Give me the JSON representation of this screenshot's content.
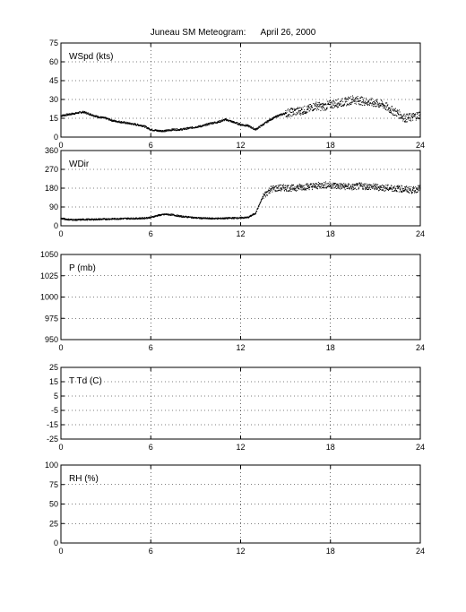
{
  "title": "Juneau SM Meteogram:      April 26, 2000",
  "chart_data": [
    {
      "type": "scatter",
      "label": "WSpd (kts)",
      "xlim": [
        0,
        24
      ],
      "xticks": [
        0,
        6,
        12,
        18,
        24
      ],
      "ylim": [
        0,
        75
      ],
      "yticks": [
        0,
        15,
        30,
        45,
        60,
        75
      ],
      "grid": true,
      "series": [
        {
          "x": [
            0,
            0.5,
            1,
            1.5,
            2,
            2.5,
            3,
            3.5,
            4,
            4.5,
            5,
            5.5,
            6,
            6.5,
            7,
            7.5,
            8,
            8.5,
            9,
            9.5,
            10,
            10.5,
            11,
            11.5,
            12,
            12.5,
            13,
            13.5,
            14,
            14.5,
            15,
            15.5,
            16,
            16.5,
            17,
            17.5,
            18,
            18.5,
            19,
            19.5,
            20,
            20.5,
            21,
            21.5,
            22,
            22.5,
            23,
            23.5,
            24
          ],
          "y": [
            17,
            18,
            19,
            20,
            18,
            16,
            15,
            13,
            12,
            11,
            10,
            9,
            6,
            5,
            5,
            6,
            6,
            7,
            8,
            9,
            11,
            12,
            14,
            12,
            10,
            9,
            6,
            10,
            14,
            17,
            19,
            20,
            21,
            22,
            25,
            24,
            26,
            27,
            28,
            30,
            29,
            28,
            27,
            26,
            22,
            19,
            15,
            16,
            18
          ]
        }
      ]
    },
    {
      "type": "scatter",
      "label": "WDir",
      "xlim": [
        0,
        24
      ],
      "xticks": [
        0,
        6,
        12,
        18,
        24
      ],
      "ylim": [
        0,
        360
      ],
      "yticks": [
        0,
        90,
        180,
        270,
        360
      ],
      "grid": true,
      "series": [
        {
          "x": [
            0,
            0.5,
            1,
            1.5,
            2,
            2.5,
            3,
            3.5,
            4,
            4.5,
            5,
            5.5,
            6,
            6.5,
            7,
            7.5,
            8,
            8.5,
            9,
            9.5,
            10,
            10.5,
            11,
            11.5,
            12,
            12.5,
            13,
            13.5,
            14,
            14.5,
            15,
            15.5,
            16,
            16.5,
            17,
            17.5,
            18,
            18.5,
            19,
            19.5,
            20,
            20.5,
            21,
            21.5,
            22,
            22.5,
            23,
            23.5,
            24
          ],
          "y": [
            35,
            30,
            28,
            30,
            30,
            31,
            32,
            33,
            34,
            35,
            35,
            36,
            40,
            50,
            55,
            52,
            45,
            42,
            38,
            36,
            35,
            35,
            36,
            37,
            38,
            40,
            60,
            140,
            175,
            180,
            182,
            180,
            185,
            188,
            190,
            195,
            195,
            190,
            188,
            185,
            190,
            188,
            185,
            182,
            180,
            178,
            175,
            170,
            180
          ]
        }
      ]
    },
    {
      "type": "line",
      "label": "P (mb)",
      "xlim": [
        0,
        24
      ],
      "xticks": [
        0,
        6,
        12,
        18,
        24
      ],
      "ylim": [
        950,
        1050
      ],
      "yticks": [
        950,
        975,
        1000,
        1025,
        1050
      ],
      "grid": true,
      "series": []
    },
    {
      "type": "line",
      "label": "T Td (C)",
      "xlim": [
        0,
        24
      ],
      "xticks": [
        0,
        6,
        12,
        18,
        24
      ],
      "ylim": [
        -25,
        25
      ],
      "yticks": [
        -25,
        -15,
        -5,
        5,
        15,
        25
      ],
      "grid": true,
      "series": []
    },
    {
      "type": "line",
      "label": "RH (%)",
      "xlim": [
        0,
        24
      ],
      "xticks": [
        0,
        6,
        12,
        18,
        24
      ],
      "ylim": [
        0,
        100
      ],
      "yticks": [
        0,
        25,
        50,
        75,
        100
      ],
      "grid": true,
      "series": []
    }
  ]
}
